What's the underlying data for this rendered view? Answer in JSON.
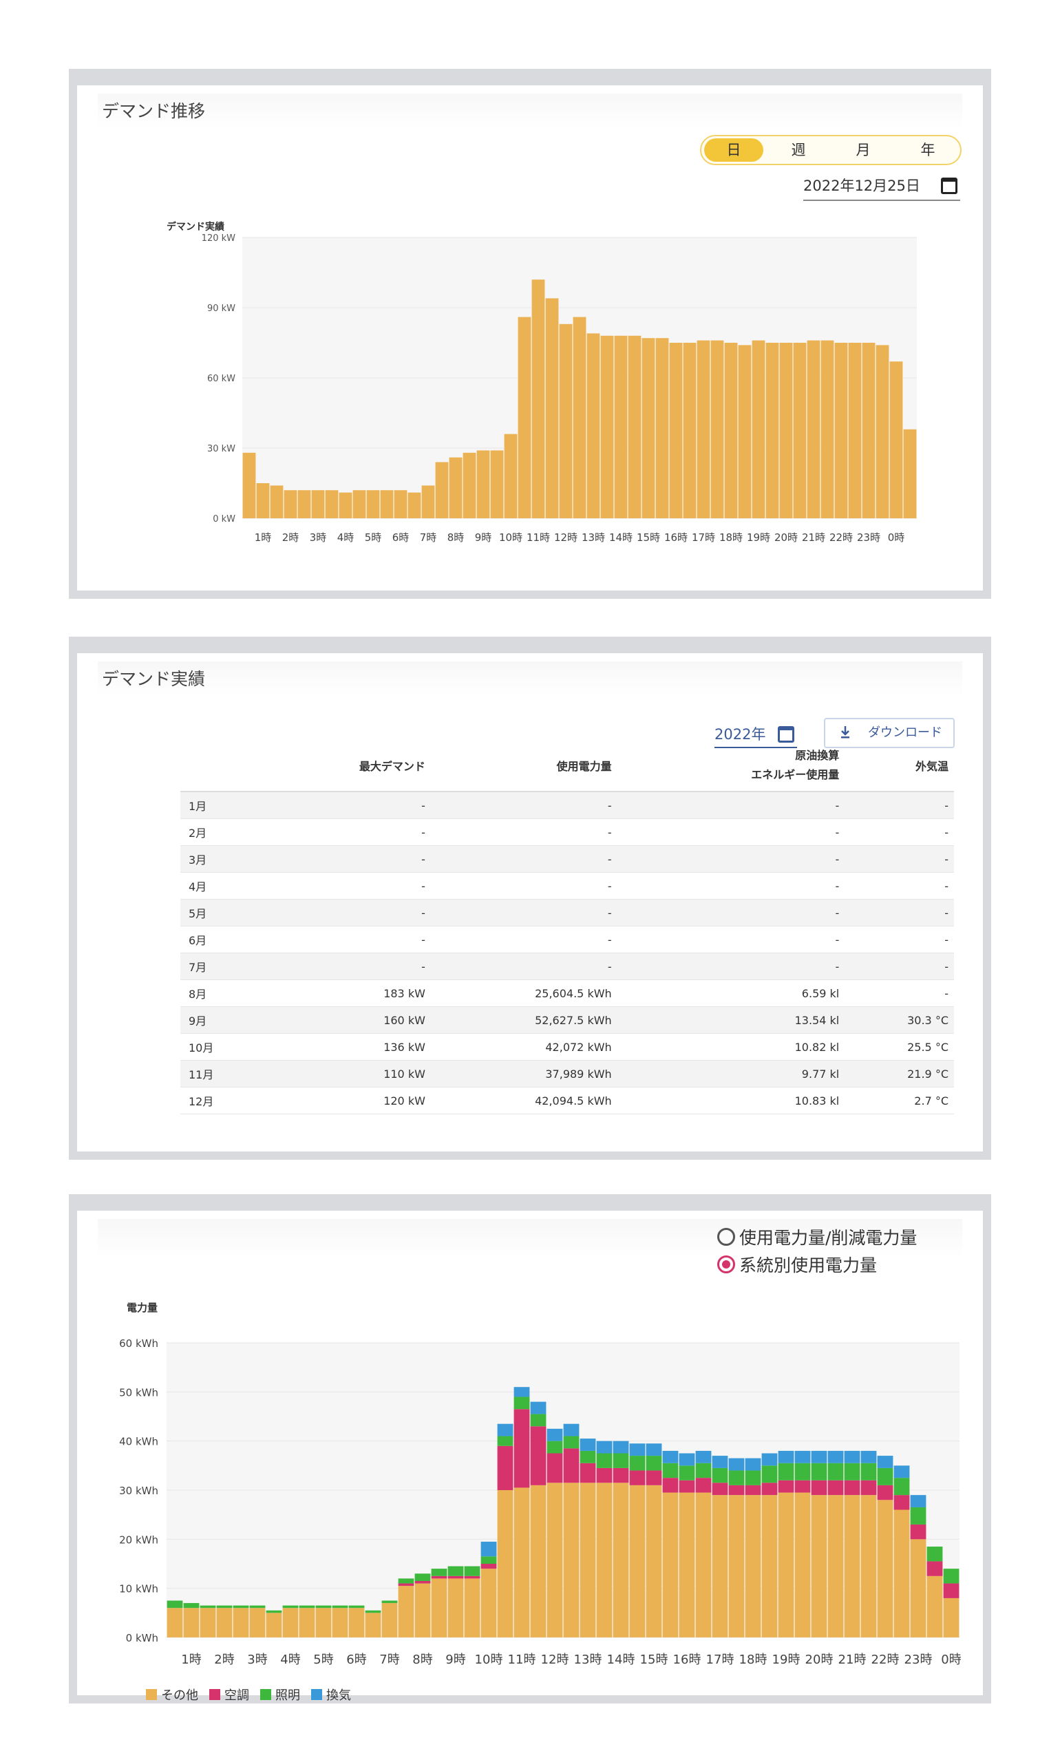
{
  "demand_trend": {
    "title": "デマンド推移",
    "period_tabs": [
      {
        "label": "日",
        "active": true
      },
      {
        "label": "週",
        "active": false
      },
      {
        "label": "月",
        "active": false
      },
      {
        "label": "年",
        "active": false
      }
    ],
    "date": "2022年12月25日",
    "chart_data": {
      "type": "bar",
      "title": "",
      "ylabel": "デマンド実績",
      "ylim": [
        0,
        120
      ],
      "yticks": [
        "0 kW",
        "30 kW",
        "60 kW",
        "90 kW",
        "120 kW"
      ],
      "xticks": [
        "1時",
        "2時",
        "3時",
        "4時",
        "5時",
        "6時",
        "7時",
        "8時",
        "9時",
        "10時",
        "11時",
        "12時",
        "13時",
        "14時",
        "15時",
        "16時",
        "17時",
        "18時",
        "19時",
        "20時",
        "21時",
        "22時",
        "23時",
        "0時"
      ],
      "values": [
        28,
        15,
        14,
        12,
        12,
        12,
        12,
        11,
        12,
        12,
        12,
        12,
        11,
        14,
        24,
        26,
        28,
        29,
        29,
        36,
        86,
        102,
        94,
        83,
        86,
        79,
        78,
        78,
        78,
        77,
        77,
        75,
        75,
        76,
        76,
        75,
        74,
        76,
        75,
        75,
        75,
        76,
        76,
        75,
        75,
        75,
        74,
        67,
        38
      ],
      "color": "#ebb253"
    }
  },
  "demand_record": {
    "title": "デマンド実績",
    "year": "2022年",
    "download_label": "ダウンロード",
    "columns": [
      "",
      "最大デマンド",
      "使用電力量",
      "原油換算\nエネルギー使用量",
      "外気温"
    ],
    "column_labels": {
      "max": "最大デマンド",
      "usage": "使用電力量",
      "oil_1": "原油換算",
      "oil_2": "エネルギー使用量",
      "temp": "外気温"
    },
    "rows": [
      {
        "month": "1月",
        "max": "-",
        "usage": "-",
        "oil": "-",
        "temp": "-"
      },
      {
        "month": "2月",
        "max": "-",
        "usage": "-",
        "oil": "-",
        "temp": "-"
      },
      {
        "month": "3月",
        "max": "-",
        "usage": "-",
        "oil": "-",
        "temp": "-"
      },
      {
        "month": "4月",
        "max": "-",
        "usage": "-",
        "oil": "-",
        "temp": "-"
      },
      {
        "month": "5月",
        "max": "-",
        "usage": "-",
        "oil": "-",
        "temp": "-"
      },
      {
        "month": "6月",
        "max": "-",
        "usage": "-",
        "oil": "-",
        "temp": "-"
      },
      {
        "month": "7月",
        "max": "-",
        "usage": "-",
        "oil": "-",
        "temp": "-"
      },
      {
        "month": "8月",
        "max": "183 kW",
        "usage": "25,604.5 kWh",
        "oil": "6.59 kl",
        "temp": "-"
      },
      {
        "month": "9月",
        "max": "160 kW",
        "usage": "52,627.5 kWh",
        "oil": "13.54 kl",
        "temp": "30.3 °C"
      },
      {
        "month": "10月",
        "max": "136 kW",
        "usage": "42,072 kWh",
        "oil": "10.82 kl",
        "temp": "25.5 °C"
      },
      {
        "month": "11月",
        "max": "110 kW",
        "usage": "37,989 kWh",
        "oil": "9.77 kl",
        "temp": "21.9 °C"
      },
      {
        "month": "12月",
        "max": "120 kW",
        "usage": "42,094.5 kWh",
        "oil": "10.83 kl",
        "temp": "2.7 °C"
      }
    ]
  },
  "energy_usage": {
    "radio_options": [
      {
        "label": "使用電力量/削減電力量",
        "selected": false
      },
      {
        "label": "系統別使用電力量",
        "selected": true
      }
    ],
    "chart_data": {
      "type": "bar",
      "stacked": true,
      "title": "",
      "ylabel": "電力量",
      "ylim": [
        0,
        60
      ],
      "yticks": [
        "0 kWh",
        "10 kWh",
        "20 kWh",
        "30 kWh",
        "40 kWh",
        "50 kWh",
        "60 kWh"
      ],
      "xticks": [
        "1時",
        "2時",
        "3時",
        "4時",
        "5時",
        "6時",
        "7時",
        "8時",
        "9時",
        "10時",
        "11時",
        "12時",
        "13時",
        "14時",
        "15時",
        "16時",
        "17時",
        "18時",
        "19時",
        "20時",
        "21時",
        "22時",
        "23時",
        "0時"
      ],
      "series": [
        {
          "name": "その他",
          "color": "#ebb253",
          "values": [
            6,
            6,
            6,
            6,
            6,
            6,
            5,
            6,
            6,
            6,
            6,
            6,
            5,
            7,
            10.5,
            11,
            12,
            12,
            12,
            14,
            30,
            30.5,
            31,
            31.5,
            31.5,
            31.5,
            31.5,
            31.5,
            31,
            31,
            29.5,
            29.5,
            29.5,
            29,
            29,
            29,
            29,
            29.5,
            29.5,
            29,
            29,
            29,
            29,
            28,
            26,
            20,
            12.5,
            8
          ]
        },
        {
          "name": "空調",
          "color": "#d6336c",
          "values": [
            0,
            0,
            0,
            0,
            0,
            0,
            0,
            0,
            0,
            0,
            0,
            0,
            0,
            0,
            0.5,
            0.5,
            0.5,
            0.5,
            0.5,
            1,
            9,
            16,
            12,
            6,
            7,
            4,
            3,
            3,
            3,
            3,
            3,
            2.5,
            3,
            2.5,
            2,
            2,
            2.5,
            2.5,
            2.5,
            3,
            3,
            3,
            3,
            3,
            3,
            3,
            3,
            3
          ]
        },
        {
          "name": "照明",
          "color": "#3db83d",
          "values": [
            1.5,
            1,
            0.5,
            0.5,
            0.5,
            0.5,
            0.5,
            0.5,
            0.5,
            0.5,
            0.5,
            0.5,
            0.5,
            0.5,
            1,
            1.5,
            1.5,
            2,
            2,
            1.5,
            2,
            2.5,
            2.5,
            2.5,
            2.5,
            2.5,
            3,
            3,
            3,
            3,
            3,
            3,
            3,
            3,
            3,
            3,
            3.5,
            3.5,
            3.5,
            3.5,
            3.5,
            3.5,
            3.5,
            3.5,
            3.5,
            3.5,
            3,
            3
          ]
        },
        {
          "name": "換気",
          "color": "#3a9ad9",
          "values": [
            0,
            0,
            0,
            0,
            0,
            0,
            0,
            0,
            0,
            0,
            0,
            0,
            0,
            0,
            0,
            0,
            0,
            0,
            0,
            3,
            2.5,
            2,
            2.5,
            2.5,
            2.5,
            2.5,
            2.5,
            2.5,
            2.5,
            2.5,
            2.5,
            2.5,
            2.5,
            2.5,
            2.5,
            2.5,
            2.5,
            2.5,
            2.5,
            2.5,
            2.5,
            2.5,
            2.5,
            2.5,
            2.5,
            2.5,
            0,
            0
          ]
        }
      ]
    }
  }
}
